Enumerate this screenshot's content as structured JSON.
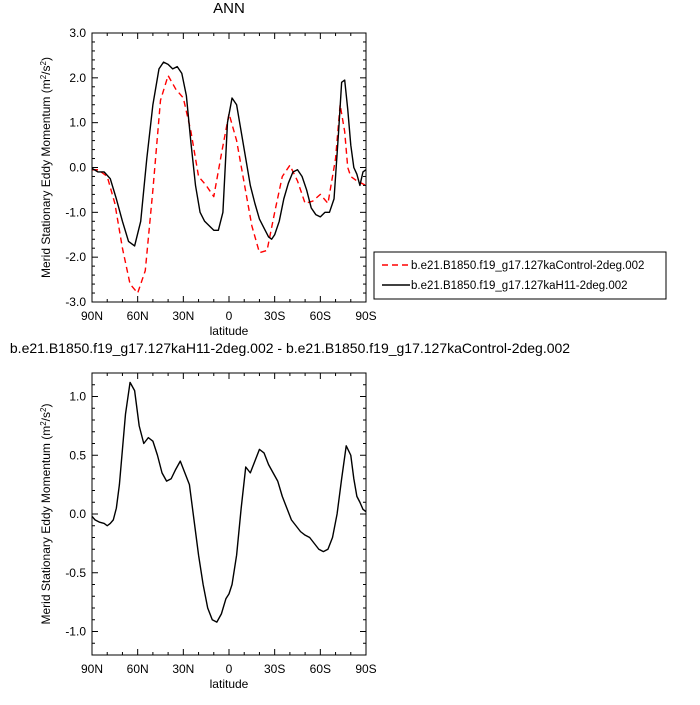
{
  "chart_data": [
    {
      "type": "line",
      "title": "ANN",
      "xlabel": "latitude",
      "ylabel": "Merid Stationary Eddy Momentum (m",
      "ylabel_sup": "2",
      "ylabel_mid": "/s",
      "ylabel_sup2": "2",
      "ylabel_end": ")",
      "x_ticks": [
        "90N",
        "60N",
        "30N",
        "0",
        "30S",
        "60S",
        "90S"
      ],
      "x_tick_values": [
        90,
        60,
        30,
        0,
        -30,
        -60,
        -90
      ],
      "y_ticks": [
        "-3.0",
        "-2.0",
        "-1.0",
        "0.0",
        "1.0",
        "2.0",
        "3.0"
      ],
      "y_tick_values": [
        -3,
        -2,
        -1,
        0,
        1,
        2,
        3
      ],
      "xlim": [
        90,
        -90
      ],
      "ylim": [
        -3,
        3
      ],
      "legend_position": "outside-right",
      "series": [
        {
          "name": "b.e21.B1850.f19_g17.127kaControl-2deg.002",
          "color": "#ff0000",
          "dash": "dashed",
          "x": [
            90,
            86,
            80,
            75,
            70,
            65,
            60,
            55,
            50,
            45,
            40,
            35,
            30,
            25,
            20,
            15,
            10,
            5,
            0,
            -5,
            -10,
            -15,
            -20,
            -25,
            -30,
            -35,
            -40,
            -45,
            -50,
            -55,
            -60,
            -65,
            -70,
            -73,
            -76,
            -78,
            -80,
            -84,
            -87,
            -90
          ],
          "y": [
            -0.05,
            -0.05,
            -0.2,
            -0.8,
            -1.8,
            -2.6,
            -2.8,
            -2.3,
            -0.5,
            1.5,
            2.05,
            1.75,
            1.55,
            0.8,
            -0.2,
            -0.4,
            -0.65,
            0.3,
            1.2,
            0.6,
            -0.35,
            -1.3,
            -1.9,
            -1.85,
            -1.0,
            -0.2,
            0.05,
            -0.3,
            -0.8,
            -0.75,
            -0.6,
            -0.8,
            0.2,
            1.4,
            0.8,
            0.0,
            -0.2,
            -0.3,
            -0.35,
            -0.4
          ]
        },
        {
          "name": "b.e21.B1850.f19_g17.127kaH11-2deg.002",
          "color": "#000000",
          "dash": "solid",
          "x": [
            90,
            86,
            82,
            78,
            74,
            70,
            66,
            62,
            58,
            54,
            50,
            46,
            43,
            40,
            37,
            34,
            31,
            28,
            25,
            22,
            19,
            16,
            13,
            10,
            7,
            4,
            1,
            -2,
            -5,
            -8,
            -11,
            -14,
            -17,
            -20,
            -23,
            -26,
            -28,
            -30,
            -33,
            -36,
            -39,
            -42,
            -45,
            -48,
            -51,
            -54,
            -57,
            -60,
            -63,
            -66,
            -69,
            -72,
            -74,
            -76,
            -78,
            -80,
            -82,
            -84,
            -86,
            -88,
            -90
          ],
          "y": [
            -0.02,
            -0.1,
            -0.1,
            -0.25,
            -0.7,
            -1.2,
            -1.65,
            -1.75,
            -1.2,
            0.2,
            1.4,
            2.2,
            2.35,
            2.3,
            2.2,
            2.25,
            2.1,
            1.6,
            0.55,
            -0.4,
            -1.0,
            -1.2,
            -1.3,
            -1.4,
            -1.4,
            -1.0,
            1.0,
            1.55,
            1.4,
            0.8,
            0.2,
            -0.4,
            -0.8,
            -1.15,
            -1.35,
            -1.55,
            -1.6,
            -1.5,
            -1.2,
            -0.7,
            -0.35,
            -0.1,
            -0.05,
            -0.2,
            -0.5,
            -0.9,
            -1.05,
            -1.1,
            -1.0,
            -1.0,
            -0.7,
            0.8,
            1.9,
            1.95,
            1.3,
            0.5,
            0.0,
            -0.15,
            -0.4,
            -0.1,
            -0.05
          ]
        }
      ]
    },
    {
      "type": "line",
      "title": "b.e21.B1850.f19_g17.127kaH11-2deg.002 - b.e21.B1850.f19_g17.127kaControl-2deg.002",
      "xlabel": "latitude",
      "ylabel": "Merid Stationary Eddy Momentum (m",
      "ylabel_sup": "2",
      "ylabel_mid": "/s",
      "ylabel_sup2": "2",
      "ylabel_end": ")",
      "x_ticks": [
        "90N",
        "60N",
        "30N",
        "0",
        "30S",
        "60S",
        "90S"
      ],
      "x_tick_values": [
        90,
        60,
        30,
        0,
        -30,
        -60,
        -90
      ],
      "y_ticks": [
        "-1.0",
        "-0.5",
        "0.0",
        "0.5",
        "1.0"
      ],
      "y_tick_values": [
        -1.0,
        -0.5,
        0.0,
        0.5,
        1.0
      ],
      "xlim": [
        90,
        -90
      ],
      "ylim": [
        -1.2,
        1.2
      ],
      "series": [
        {
          "color": "#000000",
          "dash": "solid",
          "x": [
            90,
            88,
            85,
            82,
            80,
            78,
            76,
            74,
            72,
            70,
            68,
            65,
            62,
            59,
            56,
            53,
            50,
            47,
            44,
            41,
            38,
            35,
            32,
            29,
            26,
            23,
            20,
            17,
            14,
            11,
            8,
            5,
            2,
            0,
            -2,
            -5,
            -8,
            -11,
            -14,
            -17,
            -20,
            -23,
            -26,
            -29,
            -32,
            -35,
            -38,
            -41,
            -44,
            -47,
            -50,
            -53,
            -56,
            -59,
            -62,
            -65,
            -68,
            -71,
            -74,
            -77,
            -80,
            -82,
            -84,
            -86,
            -88,
            -90
          ],
          "y": [
            -0.02,
            -0.05,
            -0.07,
            -0.08,
            -0.1,
            -0.08,
            -0.05,
            0.05,
            0.25,
            0.55,
            0.85,
            1.12,
            1.05,
            0.75,
            0.6,
            0.65,
            0.62,
            0.5,
            0.35,
            0.28,
            0.3,
            0.38,
            0.45,
            0.35,
            0.25,
            -0.05,
            -0.35,
            -0.6,
            -0.8,
            -0.9,
            -0.92,
            -0.85,
            -0.72,
            -0.68,
            -0.6,
            -0.35,
            0.05,
            0.4,
            0.35,
            0.45,
            0.55,
            0.52,
            0.42,
            0.35,
            0.28,
            0.15,
            0.05,
            -0.05,
            -0.1,
            -0.15,
            -0.18,
            -0.2,
            -0.25,
            -0.3,
            -0.32,
            -0.3,
            -0.2,
            0.0,
            0.3,
            0.58,
            0.5,
            0.3,
            0.15,
            0.1,
            0.04,
            0.02
          ]
        }
      ]
    }
  ]
}
